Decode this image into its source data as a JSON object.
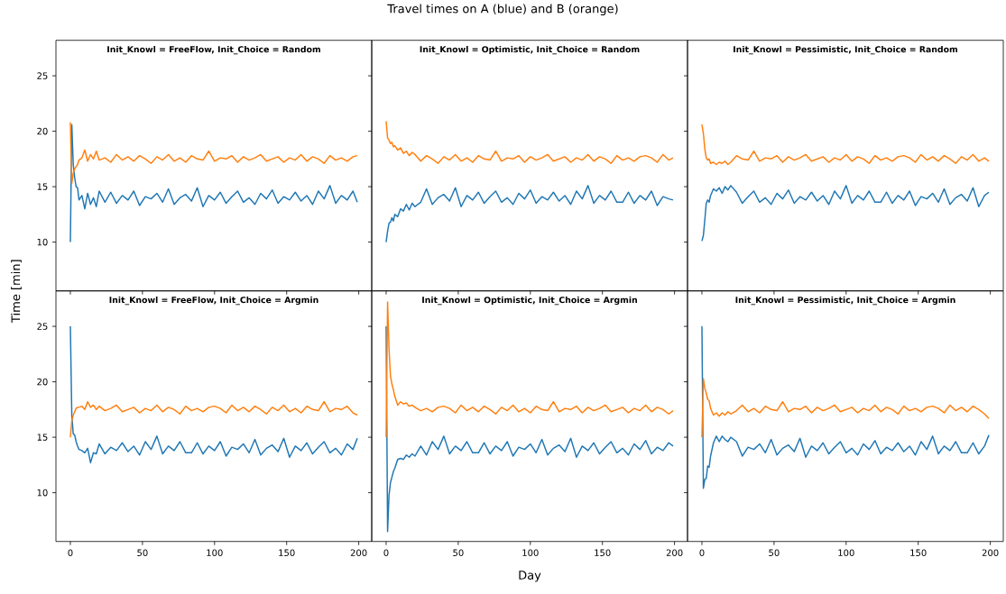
{
  "chart_data": [
    {
      "type": "line",
      "title": "Init_Knowl = FreeFlow, Init_Choice = Random",
      "annotations": [
        "Travel times on A (blue) and B (orange)"
      ],
      "ylabel": "Time [min]",
      "tick_labels": "y",
      "x": [
        0,
        1,
        2,
        3,
        4,
        5,
        6,
        8,
        10,
        12,
        14,
        16,
        18,
        20,
        24,
        28,
        32,
        36,
        40,
        44,
        48,
        52,
        56,
        60,
        64,
        68,
        72,
        76,
        80,
        84,
        88,
        92,
        96,
        100,
        104,
        108,
        112,
        116,
        120,
        124,
        128,
        132,
        136,
        140,
        144,
        148,
        152,
        156,
        160,
        164,
        168,
        172,
        176,
        180,
        184,
        188,
        192,
        196,
        199
      ],
      "series": [
        {
          "color": "#1f77b4",
          "values": [
            10,
            20.6,
            17,
            15.8,
            15,
            14.9,
            13.8,
            14.2,
            13.0,
            14.4,
            13.4,
            14.0,
            13.2,
            14.6,
            13.6,
            14.5,
            13.5,
            14.2,
            13.8,
            14.6,
            13.3,
            14.1,
            13.9,
            14.4,
            13.6,
            14.8,
            13.4,
            14.0,
            14.3,
            13.7,
            14.9,
            13.2,
            14.2,
            13.8,
            14.5,
            13.5,
            14.1,
            14.6,
            13.6,
            14.0,
            13.4,
            14.4,
            13.9,
            14.7,
            13.5,
            14.1,
            13.8,
            14.5,
            13.7,
            14.2,
            13.4,
            14.6,
            13.9,
            15.1,
            13.5,
            14.2,
            13.8,
            14.6,
            13.6
          ]
        },
        {
          "color": "#ff7f0e",
          "values": [
            20.8,
            15.3,
            16.2,
            16.6,
            16.8,
            17.0,
            17.4,
            17.6,
            18.3,
            17.3,
            17.9,
            17.5,
            18.2,
            17.4,
            17.6,
            17.2,
            17.9,
            17.4,
            17.7,
            17.3,
            17.8,
            17.5,
            17.1,
            17.7,
            17.4,
            17.9,
            17.3,
            17.6,
            17.2,
            17.8,
            17.5,
            17.4,
            18.2,
            17.3,
            17.6,
            17.5,
            17.8,
            17.2,
            17.7,
            17.4,
            17.6,
            17.9,
            17.3,
            17.5,
            17.7,
            17.2,
            17.6,
            17.4,
            17.9,
            17.3,
            17.7,
            17.5,
            17.1,
            17.8,
            17.4,
            17.6,
            17.3,
            17.7,
            17.8
          ]
        }
      ],
      "xlim": [
        -10,
        209
      ],
      "ylim": [
        5.6,
        28.2
      ],
      "xticks": [
        0,
        50,
        100,
        150,
        200
      ],
      "yticks": [
        10,
        15,
        20,
        25
      ]
    },
    {
      "type": "line",
      "title": "Init_Knowl = Optimistic, Init_Choice = Random",
      "tick_labels": false,
      "x": [
        0,
        1,
        2,
        3,
        4,
        5,
        6,
        8,
        10,
        12,
        14,
        16,
        18,
        20,
        24,
        28,
        32,
        36,
        40,
        44,
        48,
        52,
        56,
        60,
        64,
        68,
        72,
        76,
        80,
        84,
        88,
        92,
        96,
        100,
        104,
        108,
        112,
        116,
        120,
        124,
        128,
        132,
        136,
        140,
        144,
        148,
        152,
        156,
        160,
        164,
        168,
        172,
        176,
        180,
        184,
        188,
        192,
        196,
        199
      ],
      "series": [
        {
          "color": "#1f77b4",
          "values": [
            10,
            11,
            11.7,
            11.8,
            12.2,
            11.9,
            12.5,
            12.3,
            13.0,
            12.8,
            13.4,
            12.9,
            13.5,
            13.2,
            13.6,
            14.8,
            13.4,
            14.0,
            14.3,
            13.7,
            14.9,
            13.2,
            14.2,
            13.8,
            14.5,
            13.5,
            14.1,
            14.6,
            13.6,
            14.0,
            13.4,
            14.4,
            13.9,
            14.7,
            13.5,
            14.1,
            13.8,
            14.5,
            13.7,
            14.2,
            13.4,
            14.6,
            13.9,
            15.1,
            13.5,
            14.2,
            13.8,
            14.6,
            13.6,
            13.6,
            14.5,
            13.5,
            14.2,
            13.8,
            14.6,
            13.3,
            14.1,
            13.9,
            13.8
          ]
        },
        {
          "color": "#ff7f0e",
          "values": [
            20.9,
            19.4,
            19.2,
            18.9,
            19.0,
            18.6,
            18.7,
            18.3,
            18.5,
            18.0,
            18.2,
            17.8,
            18.1,
            17.9,
            17.3,
            17.8,
            17.5,
            17.1,
            17.7,
            17.4,
            17.9,
            17.3,
            17.6,
            17.2,
            17.8,
            17.5,
            17.4,
            18.2,
            17.3,
            17.6,
            17.5,
            17.8,
            17.2,
            17.7,
            17.4,
            17.6,
            17.9,
            17.3,
            17.5,
            17.7,
            17.2,
            17.6,
            17.4,
            17.9,
            17.3,
            17.7,
            17.5,
            17.1,
            17.8,
            17.4,
            17.6,
            17.3,
            17.7,
            17.8,
            17.6,
            17.2,
            17.9,
            17.4,
            17.6
          ]
        }
      ],
      "xlim": [
        -10,
        209
      ],
      "ylim": [
        5.6,
        28.2
      ],
      "xticks": [
        0,
        50,
        100,
        150,
        200
      ],
      "yticks": [
        10,
        15,
        20,
        25
      ]
    },
    {
      "type": "line",
      "title": "Init_Knowl = Pessimistic, Init_Choice = Random",
      "tick_labels": false,
      "x": [
        0,
        1,
        2,
        3,
        4,
        5,
        6,
        8,
        10,
        12,
        14,
        16,
        18,
        20,
        24,
        28,
        32,
        36,
        40,
        44,
        48,
        52,
        56,
        60,
        64,
        68,
        72,
        76,
        80,
        84,
        88,
        92,
        96,
        100,
        104,
        108,
        112,
        116,
        120,
        124,
        128,
        132,
        136,
        140,
        144,
        148,
        152,
        156,
        160,
        164,
        168,
        172,
        176,
        180,
        184,
        188,
        192,
        196,
        199
      ],
      "series": [
        {
          "color": "#1f77b4",
          "values": [
            10.1,
            10.6,
            12.0,
            13.5,
            13.8,
            13.6,
            14.2,
            14.8,
            14.6,
            14.9,
            14.4,
            15.0,
            14.7,
            15.1,
            14.5,
            13.5,
            14.1,
            14.6,
            13.6,
            14.0,
            13.4,
            14.4,
            13.9,
            14.7,
            13.5,
            14.1,
            13.8,
            14.5,
            13.7,
            14.2,
            13.4,
            14.6,
            13.9,
            15.1,
            13.5,
            14.2,
            13.8,
            14.6,
            13.6,
            13.6,
            14.5,
            13.5,
            14.2,
            13.8,
            14.6,
            13.3,
            14.1,
            13.9,
            14.4,
            13.6,
            14.8,
            13.4,
            14.0,
            14.3,
            13.7,
            14.9,
            13.2,
            14.2,
            14.5
          ]
        },
        {
          "color": "#ff7f0e",
          "values": [
            20.6,
            19.8,
            18.4,
            17.6,
            17.4,
            17.5,
            17.1,
            17.2,
            17.0,
            17.2,
            17.1,
            17.3,
            17.0,
            17.2,
            17.8,
            17.5,
            17.4,
            18.2,
            17.3,
            17.6,
            17.5,
            17.8,
            17.2,
            17.7,
            17.4,
            17.6,
            17.9,
            17.3,
            17.5,
            17.7,
            17.2,
            17.6,
            17.4,
            17.9,
            17.3,
            17.7,
            17.5,
            17.1,
            17.8,
            17.4,
            17.6,
            17.3,
            17.7,
            17.8,
            17.6,
            17.2,
            17.9,
            17.4,
            17.7,
            17.3,
            17.8,
            17.5,
            17.1,
            17.7,
            17.4,
            17.9,
            17.3,
            17.6,
            17.3
          ]
        }
      ],
      "xlim": [
        -10,
        209
      ],
      "ylim": [
        5.6,
        28.2
      ],
      "xticks": [
        0,
        50,
        100,
        150,
        200
      ],
      "yticks": [
        10,
        15,
        20,
        25
      ]
    },
    {
      "type": "line",
      "title": "Init_Knowl = FreeFlow, Init_Choice = Argmin",
      "x": [
        0,
        1,
        2,
        3,
        4,
        5,
        6,
        8,
        10,
        12,
        14,
        16,
        18,
        20,
        24,
        28,
        32,
        36,
        40,
        44,
        48,
        52,
        56,
        60,
        64,
        68,
        72,
        76,
        80,
        84,
        88,
        92,
        96,
        100,
        104,
        108,
        112,
        116,
        120,
        124,
        128,
        132,
        136,
        140,
        144,
        148,
        152,
        156,
        160,
        164,
        168,
        172,
        176,
        180,
        184,
        188,
        192,
        196,
        199
      ],
      "series": [
        {
          "color": "#1f77b4",
          "values": [
            25,
            17,
            15.3,
            15.2,
            14.6,
            14.2,
            13.9,
            13.8,
            13.6,
            14.0,
            12.7,
            13.6,
            13.5,
            14.4,
            13.5,
            14.1,
            13.8,
            14.5,
            13.7,
            14.2,
            13.4,
            14.6,
            13.9,
            15.1,
            13.5,
            14.2,
            13.8,
            14.6,
            13.6,
            13.6,
            14.5,
            13.5,
            14.2,
            13.8,
            14.6,
            13.3,
            14.1,
            13.9,
            14.4,
            13.6,
            14.8,
            13.4,
            14.0,
            14.3,
            13.7,
            14.9,
            13.2,
            14.2,
            13.8,
            14.5,
            13.5,
            14.1,
            14.6,
            13.6,
            14.0,
            13.4,
            14.4,
            13.9,
            14.9
          ]
        },
        {
          "color": "#ff7f0e",
          "values": [
            15,
            16.5,
            17.0,
            17.3,
            17.6,
            17.7,
            17.7,
            17.8,
            17.5,
            18.2,
            17.7,
            17.9,
            17.5,
            17.8,
            17.4,
            17.6,
            17.9,
            17.3,
            17.5,
            17.7,
            17.2,
            17.6,
            17.4,
            17.9,
            17.3,
            17.7,
            17.5,
            17.1,
            17.8,
            17.4,
            17.6,
            17.3,
            17.7,
            17.8,
            17.6,
            17.2,
            17.9,
            17.4,
            17.7,
            17.3,
            17.8,
            17.5,
            17.1,
            17.7,
            17.4,
            17.9,
            17.3,
            17.6,
            17.2,
            17.8,
            17.5,
            17.4,
            18.2,
            17.3,
            17.6,
            17.5,
            17.8,
            17.2,
            17.0
          ]
        }
      ],
      "xlim": [
        -10,
        209
      ],
      "ylim": [
        5.6,
        28.2
      ],
      "xticks": [
        0,
        50,
        100,
        150,
        200
      ],
      "yticks": [
        10,
        15,
        20,
        25
      ]
    },
    {
      "type": "line",
      "title": "Init_Knowl = Optimistic, Init_Choice = Argmin",
      "xlabel": "Day",
      "tick_labels": "x",
      "x": [
        0,
        1,
        2,
        3,
        4,
        5,
        6,
        8,
        10,
        12,
        14,
        16,
        18,
        20,
        24,
        28,
        32,
        36,
        40,
        44,
        48,
        52,
        56,
        60,
        64,
        68,
        72,
        76,
        80,
        84,
        88,
        92,
        96,
        100,
        104,
        108,
        112,
        116,
        120,
        124,
        128,
        132,
        136,
        140,
        144,
        148,
        152,
        156,
        160,
        164,
        168,
        172,
        176,
        180,
        184,
        188,
        192,
        196,
        199
      ],
      "series": [
        {
          "color": "#1f77b4",
          "values": [
            25,
            6.5,
            9.8,
            10.9,
            11.4,
            11.9,
            12.2,
            13.0,
            13.1,
            13.0,
            13.4,
            13.2,
            13.5,
            13.3,
            14.2,
            13.4,
            14.6,
            13.9,
            15.1,
            13.5,
            14.2,
            13.8,
            14.6,
            13.6,
            13.6,
            14.5,
            13.5,
            14.2,
            13.8,
            14.6,
            13.3,
            14.1,
            13.9,
            14.4,
            13.6,
            14.8,
            13.4,
            14.0,
            14.3,
            13.7,
            14.9,
            13.2,
            14.2,
            13.8,
            14.5,
            13.5,
            14.1,
            14.6,
            13.6,
            14.0,
            13.4,
            14.4,
            13.9,
            14.7,
            13.5,
            14.1,
            13.8,
            14.5,
            14.2
          ]
        },
        {
          "color": "#ff7f0e",
          "values": [
            15,
            27.2,
            23,
            20.5,
            19.8,
            19.3,
            18.7,
            17.9,
            18.2,
            18.0,
            18.1,
            17.8,
            17.9,
            17.7,
            17.4,
            17.6,
            17.3,
            17.7,
            17.8,
            17.6,
            17.2,
            17.9,
            17.4,
            17.7,
            17.3,
            17.8,
            17.5,
            17.1,
            17.7,
            17.4,
            17.9,
            17.3,
            17.6,
            17.2,
            17.8,
            17.5,
            17.4,
            18.2,
            17.3,
            17.6,
            17.5,
            17.8,
            17.2,
            17.7,
            17.4,
            17.6,
            17.9,
            17.3,
            17.5,
            17.7,
            17.2,
            17.6,
            17.4,
            17.9,
            17.3,
            17.7,
            17.5,
            17.1,
            17.4
          ]
        }
      ],
      "xlim": [
        -10,
        209
      ],
      "ylim": [
        5.6,
        28.2
      ],
      "xticks": [
        0,
        50,
        100,
        150,
        200
      ],
      "yticks": [
        10,
        15,
        20,
        25
      ]
    },
    {
      "type": "line",
      "title": "Init_Knowl = Pessimistic, Init_Choice = Argmin",
      "tick_labels": "x",
      "x": [
        0,
        1,
        2,
        3,
        4,
        5,
        6,
        8,
        10,
        12,
        14,
        16,
        18,
        20,
        24,
        28,
        32,
        36,
        40,
        44,
        48,
        52,
        56,
        60,
        64,
        68,
        72,
        76,
        80,
        84,
        88,
        92,
        96,
        100,
        104,
        108,
        112,
        116,
        120,
        124,
        128,
        132,
        136,
        140,
        144,
        148,
        152,
        156,
        160,
        164,
        168,
        172,
        176,
        180,
        184,
        188,
        192,
        196,
        199
      ],
      "series": [
        {
          "color": "#1f77b4",
          "values": [
            25,
            10.4,
            11.2,
            11.3,
            12.4,
            12.3,
            13.3,
            14.5,
            15.1,
            14.6,
            15.1,
            14.8,
            14.6,
            15.0,
            14.6,
            13.3,
            14.1,
            13.9,
            14.4,
            13.6,
            14.8,
            13.4,
            14.0,
            14.3,
            13.7,
            14.9,
            13.2,
            14.2,
            13.8,
            14.5,
            13.5,
            14.1,
            14.6,
            13.6,
            14.0,
            13.4,
            14.4,
            13.9,
            14.7,
            13.5,
            14.1,
            13.8,
            14.5,
            13.7,
            14.2,
            13.4,
            14.6,
            13.9,
            15.1,
            13.5,
            14.2,
            13.8,
            14.6,
            13.6,
            13.6,
            14.5,
            13.5,
            14.2,
            15.2
          ]
        },
        {
          "color": "#ff7f0e",
          "values": [
            15,
            20.3,
            19.4,
            19.0,
            18.4,
            18.3,
            17.6,
            17.0,
            17.2,
            16.9,
            17.2,
            17.0,
            17.3,
            17.1,
            17.4,
            17.9,
            17.3,
            17.6,
            17.2,
            17.8,
            17.5,
            17.4,
            18.2,
            17.3,
            17.6,
            17.5,
            17.8,
            17.2,
            17.7,
            17.4,
            17.6,
            17.9,
            17.3,
            17.5,
            17.7,
            17.2,
            17.6,
            17.4,
            17.9,
            17.3,
            17.7,
            17.5,
            17.1,
            17.8,
            17.4,
            17.6,
            17.3,
            17.7,
            17.8,
            17.6,
            17.2,
            17.9,
            17.4,
            17.7,
            17.3,
            17.8,
            17.5,
            17.1,
            16.7
          ]
        }
      ],
      "xlim": [
        -10,
        209
      ],
      "ylim": [
        5.6,
        28.2
      ],
      "xticks": [
        0,
        50,
        100,
        150,
        200
      ],
      "yticks": [
        10,
        15,
        20,
        25
      ]
    }
  ]
}
